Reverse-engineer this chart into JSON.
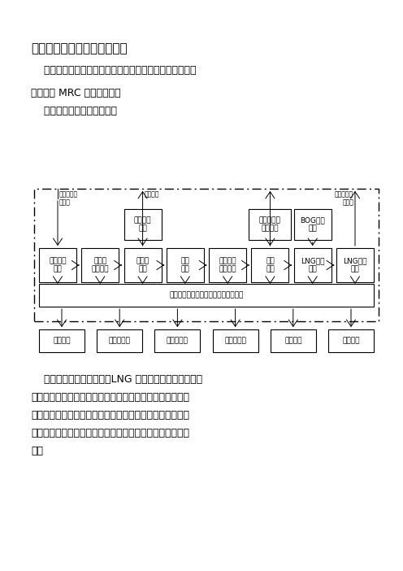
{
  "title": "天然气液化项目工艺技术方案",
  "para1_indent": "    天然气首先做预处理（包括脱酸、脱水、脱苯和脱汞），",
  "para2": "然后采用 MRC 工艺去液化。",
  "para3_indent": "    下图为装置的总体系统框图",
  "bg_color": "#ffffff",
  "main_row_boxes": [
    {
      "label": "计量调压\n单元",
      "col": 0
    },
    {
      "label": "原料气\n增压系统",
      "col": 1
    },
    {
      "label": "脱酸气\n单元",
      "col": 2
    },
    {
      "label": "脱水\n单元",
      "col": 3
    },
    {
      "label": "脱汞与脱\n粉尘单元",
      "col": 4
    },
    {
      "label": "液化\n单元",
      "col": 5
    },
    {
      "label": "LNG储存\n单元",
      "col": 6
    },
    {
      "label": "LNG装车\n单元",
      "col": 7
    }
  ],
  "upper_boxes": [
    {
      "label": "脱液再生\n单元",
      "col": 2
    },
    {
      "label": "冷剂出罐与\n配比单元",
      "col": 5
    },
    {
      "label": "BOG回收\n单元",
      "col": 6
    }
  ],
  "instrument_label": "仪表控制系统（过程控制和安全控制）",
  "lower_boxes": [
    "供电系统",
    "冷却水系统",
    "仪表风系统",
    "导热油系统",
    "氮气系统",
    "消防单元"
  ],
  "inlet1_label": "原料天然气\n进装置",
  "inlet2_label": "二氧化碳",
  "outlet1_label": "去燃烧系统\n燃料气",
  "para4_lines": [
    "    点画线内为主工艺单元，LNG 生产主要在工艺单元内完",
    "成。点画线之外为公用工程系统，为工艺单元提供电力、热",
    "源和冷却。所有单元设备通过仪表控制系统（过程控制和安",
    "全控制）连接为有机整体，完成对装置各测控点的测量、控",
    "制。"
  ]
}
